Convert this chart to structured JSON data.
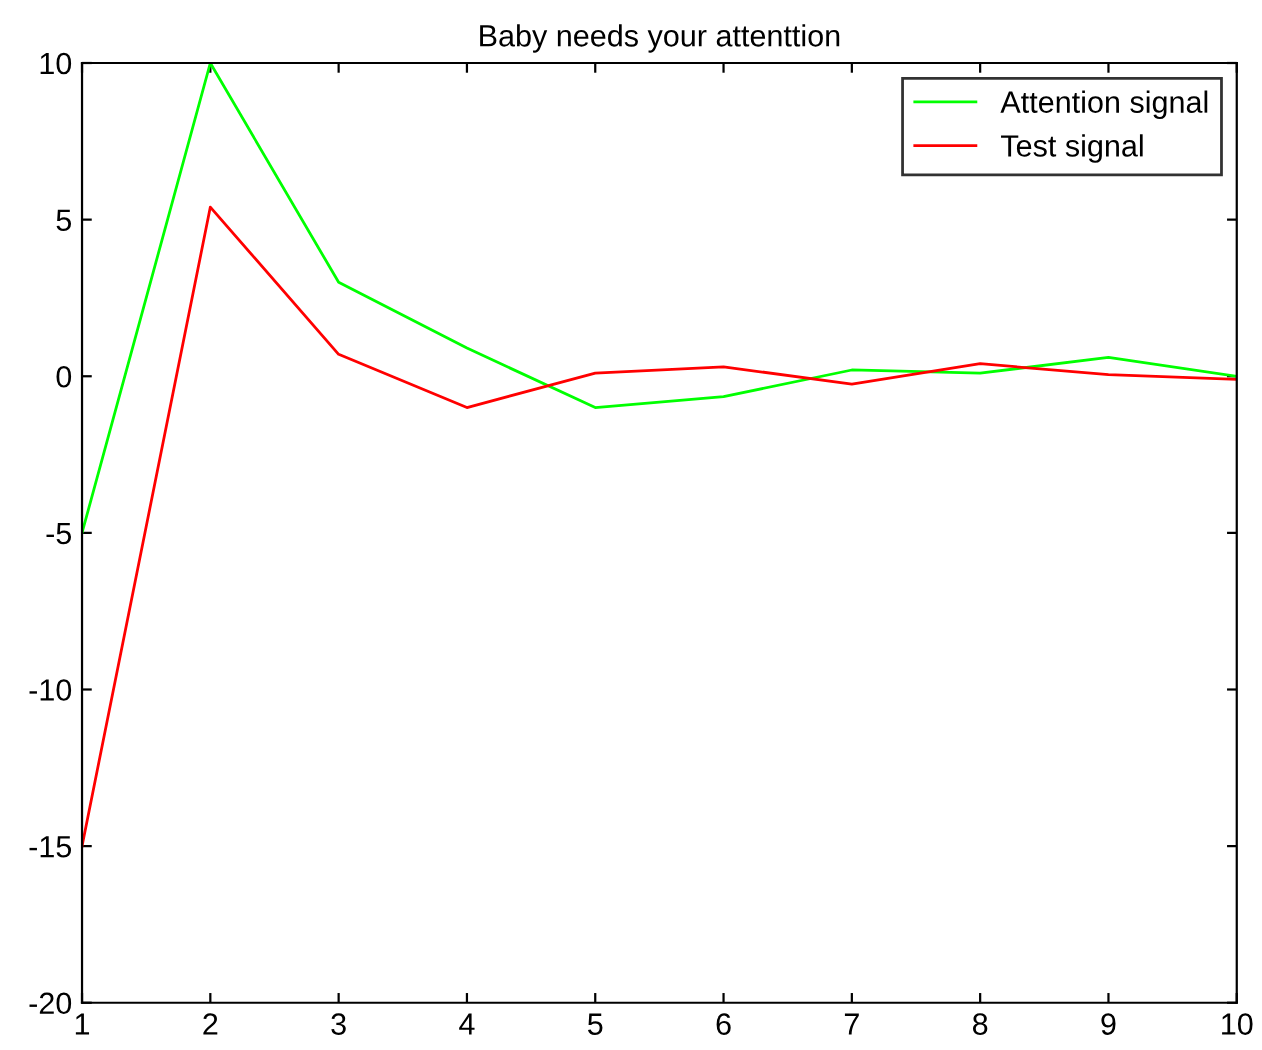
{
  "chart_data": {
    "type": "line",
    "title": "Baby needs your attenttion",
    "x": [
      1,
      2,
      3,
      4,
      5,
      6,
      7,
      8,
      9,
      10
    ],
    "series": [
      {
        "name": "Attention signal",
        "color": "#00ff00",
        "values": [
          -5,
          10,
          3,
          0.9,
          -1,
          -0.65,
          0.2,
          0.1,
          0.6,
          0
        ]
      },
      {
        "name": "Test signal",
        "color": "#ff0000",
        "values": [
          -15,
          5.4,
          0.7,
          -1,
          0.1,
          0.3,
          -0.25,
          0.4,
          0.05,
          -0.1
        ]
      }
    ],
    "xlim": [
      1,
      10
    ],
    "ylim": [
      -20,
      10
    ],
    "xticks": [
      1,
      2,
      3,
      4,
      5,
      6,
      7,
      8,
      9,
      10
    ],
    "yticks": [
      -20,
      -15,
      -10,
      -5,
      0,
      5,
      10
    ],
    "grid": false,
    "legend": "top right",
    "marker": "none",
    "line_style": "solid"
  }
}
